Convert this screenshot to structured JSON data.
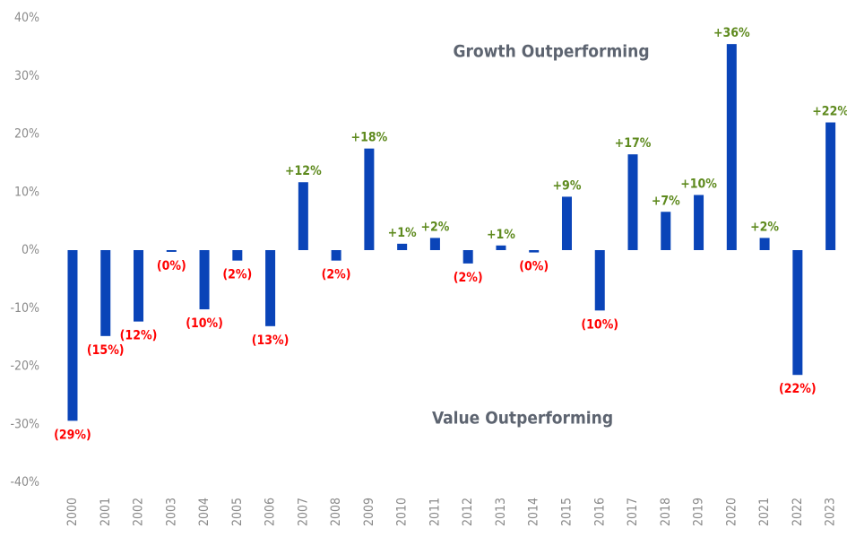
{
  "chart_data": {
    "type": "bar",
    "annotations": [
      "Growth Outperforming",
      "Value Outperforming"
    ],
    "categories": [
      "2000",
      "2001",
      "2002",
      "2003",
      "2004",
      "2005",
      "2006",
      "2007",
      "2008",
      "2009",
      "2010",
      "2011",
      "2012",
      "2013",
      "2014",
      "2015",
      "2016",
      "2017",
      "2018",
      "2019",
      "2020",
      "2021",
      "2022",
      "2023"
    ],
    "values": [
      -29.4,
      -14.8,
      -12.3,
      -0.3,
      -10.2,
      -1.8,
      -13.1,
      11.7,
      -1.8,
      17.5,
      1.1,
      2.1,
      -2.3,
      0.8,
      -0.4,
      9.2,
      -10.4,
      16.5,
      6.6,
      9.5,
      35.5,
      2.1,
      -21.5,
      22
    ],
    "value_labels": [
      "(29%)",
      "(15%)",
      "(12%)",
      "(0%)",
      "(10%)",
      "(2%)",
      "(13%)",
      "+12%",
      "(2%)",
      "+18%",
      "+1%",
      "+2%",
      "(2%)",
      "+1%",
      "(0%)",
      "+9%",
      "(10%)",
      "+17%",
      "+7%",
      "+10%",
      "+36%",
      "+2%",
      "(22%)",
      "+22%"
    ],
    "color": "#0a44b8",
    "positive_label_color": "#5e8a1e",
    "negative_label_color": "#ff0000",
    "ylim": [
      -40,
      40
    ],
    "yticks": [
      {
        "value": -40,
        "label": "-40%"
      },
      {
        "value": -30,
        "label": "-30%"
      },
      {
        "value": -20,
        "label": "-20%"
      },
      {
        "value": -10,
        "label": "-10%"
      },
      {
        "value": 0,
        "label": "0%"
      },
      {
        "value": 10,
        "label": "10%"
      },
      {
        "value": 20,
        "label": "20%"
      },
      {
        "value": 30,
        "label": "30%"
      },
      {
        "value": 40,
        "label": "40%"
      }
    ],
    "grid": false
  }
}
